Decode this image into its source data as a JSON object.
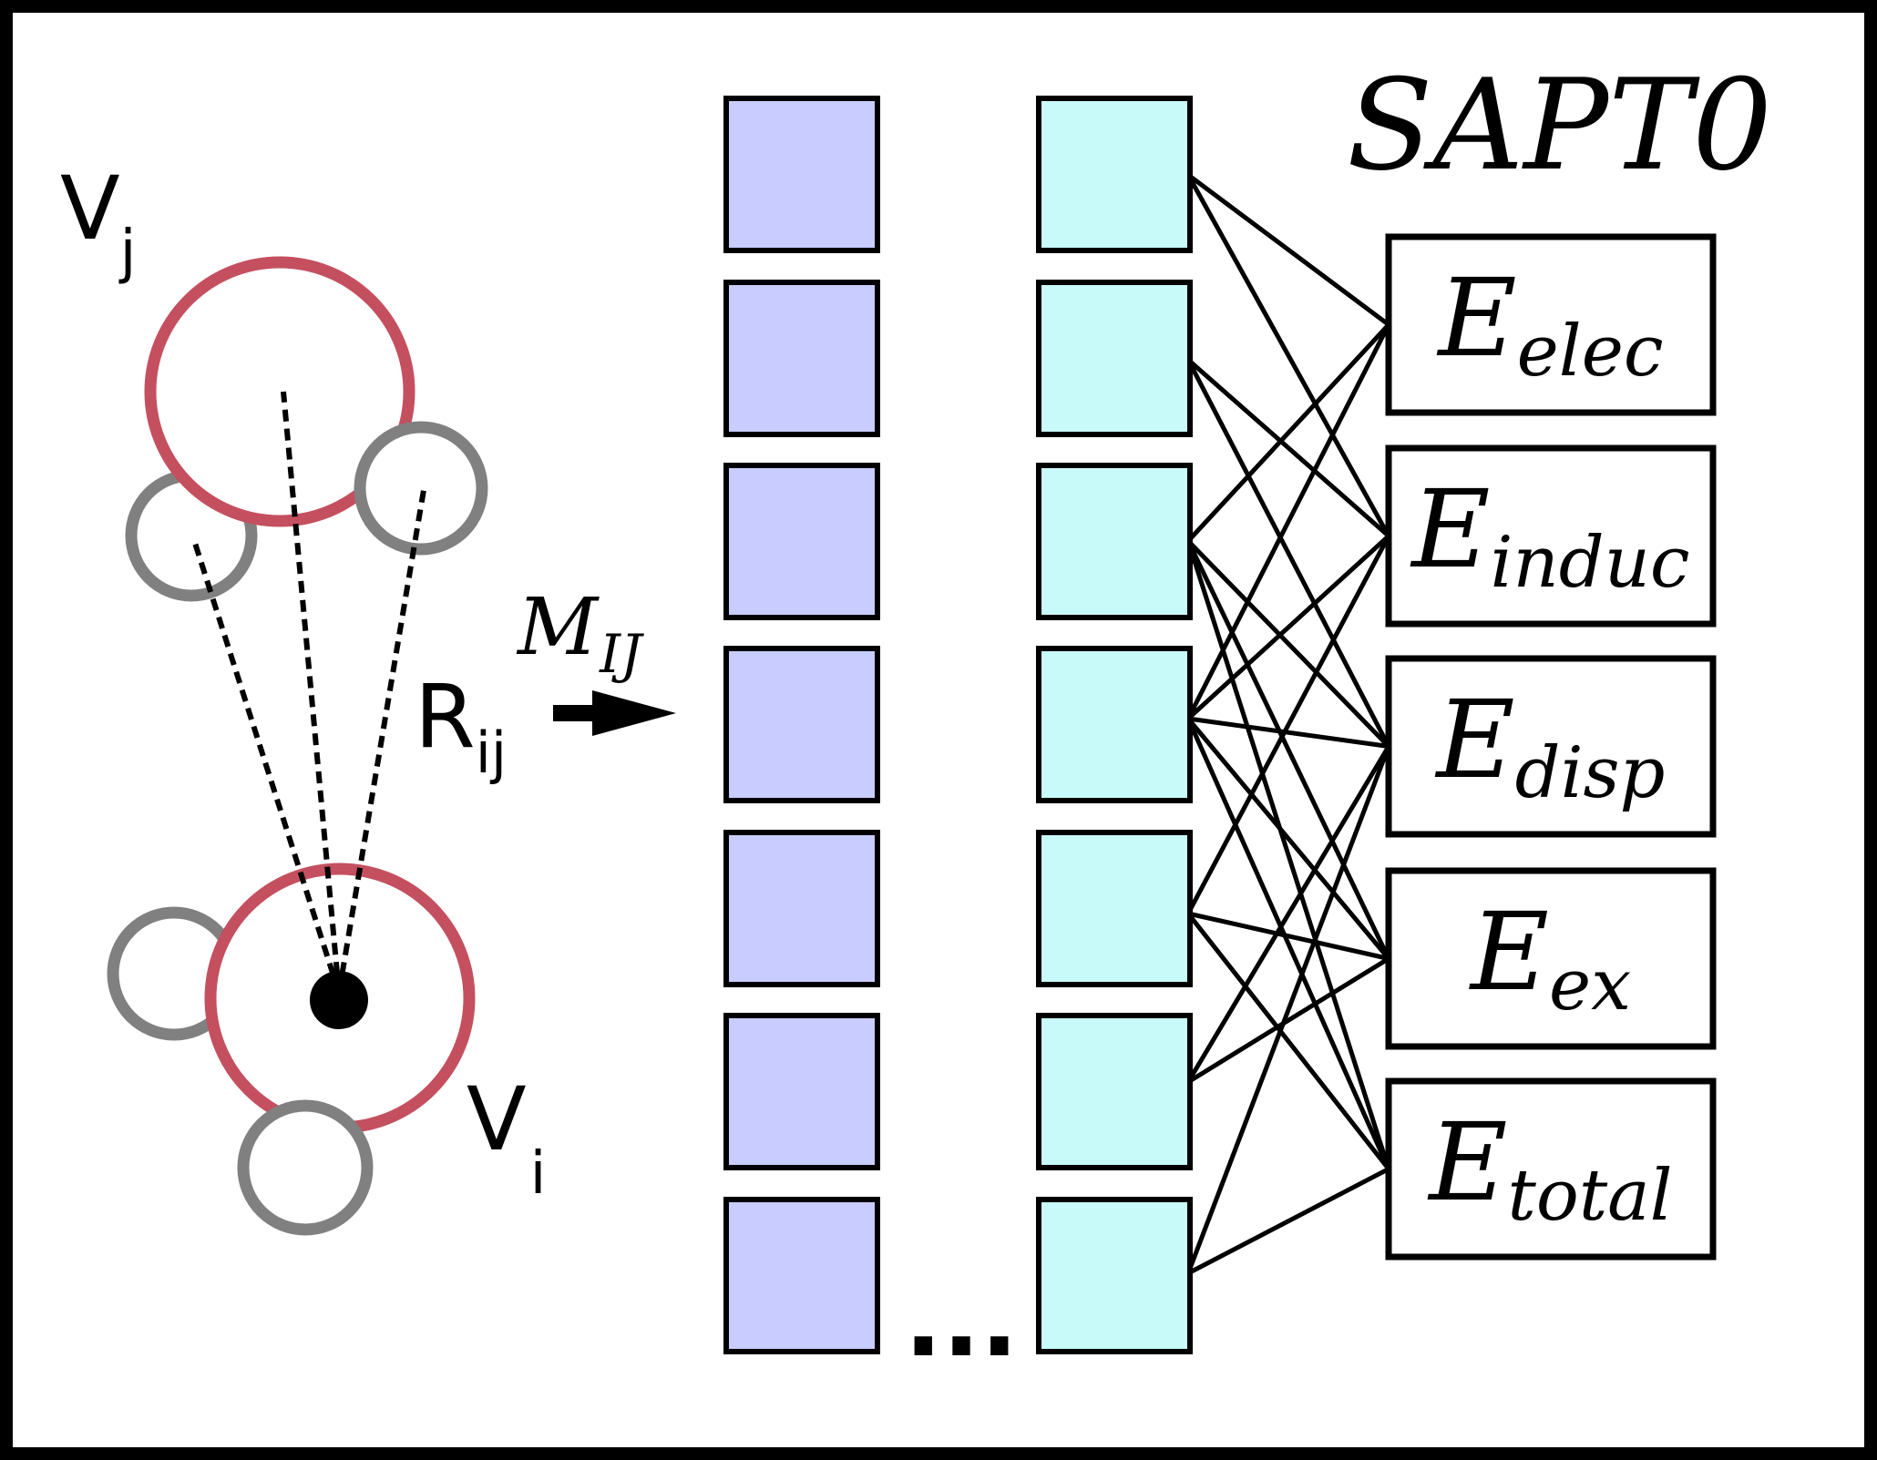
{
  "molecule": {
    "vj": {
      "base": "V",
      "sub": "j"
    },
    "vi": {
      "base": "V",
      "sub": "i"
    },
    "rij": {
      "base": "R",
      "sub": "ij"
    },
    "colors": {
      "heavy_atom": "#c4505f",
      "light_atom": "#808080",
      "bond_line": "#000000"
    }
  },
  "matrix": {
    "base": "M",
    "sub": "IJ"
  },
  "layers": {
    "input": {
      "count": 7,
      "color": "#c8ccff"
    },
    "hidden": {
      "count": 7,
      "color": "#c8fafa"
    },
    "ellipsis": "..."
  },
  "sapt": {
    "title": "SAPT0",
    "terms": [
      {
        "base": "E",
        "sub": "elec"
      },
      {
        "base": "E",
        "sub": "induc"
      },
      {
        "base": "E",
        "sub": "disp"
      },
      {
        "base": "E",
        "sub": "ex"
      },
      {
        "base": "E",
        "sub": "total"
      }
    ]
  },
  "connections": [
    [
      0,
      0
    ],
    [
      0,
      1
    ],
    [
      1,
      1
    ],
    [
      1,
      2
    ],
    [
      2,
      0
    ],
    [
      2,
      2
    ],
    [
      2,
      3
    ],
    [
      2,
      4
    ],
    [
      3,
      0
    ],
    [
      3,
      1
    ],
    [
      3,
      2
    ],
    [
      3,
      3
    ],
    [
      3,
      4
    ],
    [
      4,
      1
    ],
    [
      4,
      3
    ],
    [
      4,
      4
    ],
    [
      5,
      2
    ],
    [
      5,
      3
    ],
    [
      6,
      2
    ],
    [
      6,
      4
    ]
  ]
}
